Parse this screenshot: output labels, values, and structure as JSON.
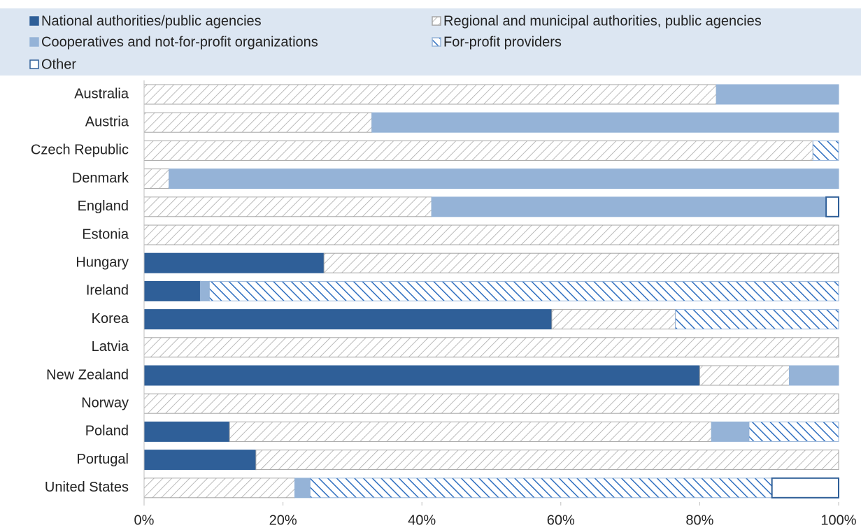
{
  "chart_data": {
    "type": "stacked-barh",
    "categories": [
      "Australia",
      "Austria",
      "Czech Republic",
      "Denmark",
      "England",
      "Estonia",
      "Hungary",
      "Ireland",
      "Korea",
      "Latvia",
      "New Zealand",
      "Norway",
      "Poland",
      "Portugal",
      "United States"
    ],
    "series": [
      {
        "name": "National authorities/public agencies",
        "color": "#2f5f98",
        "edgecolor": "#2f5f98",
        "pattern": "solid",
        "values": [
          0,
          0,
          0,
          0,
          0,
          0,
          25.9,
          8.1,
          58.7,
          0,
          80.0,
          0,
          12.3,
          16.1,
          0
        ]
      },
      {
        "name": "Regional and municipal authorities, public agencies",
        "color": "#a6a6a6",
        "edgecolor": "#a6a6a6",
        "pattern": "forward-hatch",
        "values": [
          82.4,
          32.8,
          96.3,
          3.6,
          41.4,
          100,
          74.1,
          0,
          17.8,
          100,
          12.9,
          100,
          69.4,
          83.9,
          21.7
        ]
      },
      {
        "name": "Cooperatives and not-for-profit organizations",
        "color": "#95b3d7",
        "edgecolor": "#95b3d7",
        "pattern": "solid",
        "values": [
          17.6,
          67.2,
          0,
          96.4,
          56.8,
          0,
          0,
          1.3,
          0,
          0,
          7.1,
          0,
          5.4,
          0,
          2.2
        ]
      },
      {
        "name": "For-profit providers",
        "color": "#2f6fc0",
        "edgecolor": "#95b3d7",
        "pattern": "back-hatch",
        "values": [
          0,
          0,
          3.7,
          0,
          0,
          0,
          0,
          90.6,
          23.5,
          0,
          0,
          0,
          12.9,
          0,
          66.5
        ]
      },
      {
        "name": "Other",
        "color": "#ffffff",
        "edgecolor": "#2f5f98",
        "pattern": "solid",
        "values": [
          0,
          0,
          0,
          0,
          1.8,
          0,
          0,
          0,
          0,
          0,
          0,
          0,
          0,
          0,
          9.6
        ]
      }
    ],
    "xlim": [
      0,
      100
    ],
    "xticks": [
      {
        "value": 0,
        "label": "0%"
      },
      {
        "value": 20,
        "label": "20%"
      },
      {
        "value": 40,
        "label": "40%"
      },
      {
        "value": 60,
        "label": "60%"
      },
      {
        "value": 80,
        "label": "80%"
      },
      {
        "value": 100,
        "label": "100%"
      }
    ],
    "legend": "top"
  }
}
